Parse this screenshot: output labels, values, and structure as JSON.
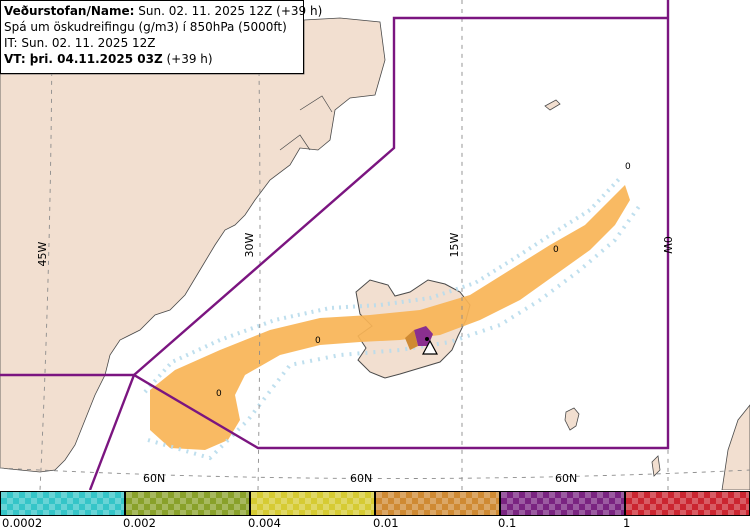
{
  "header": {
    "line1_label": "Veðurstofan/Name:",
    "line1_value": " Sun. 02. 11. 2025 12Z (+39 h)",
    "line2": "Spá um öskudreifingu (g/m3) í 850hPa (5000ft)",
    "line3": "IT: Sun. 02. 11. 2025 12Z",
    "line4_label": "VT: þri. 04.11.2025 03Z",
    "line4_value": " (+39 h)"
  },
  "map": {
    "longitude_labels": [
      "45W",
      "30W",
      "15W",
      "0W"
    ],
    "latitude_labels": [
      "60N",
      "60N",
      "60N"
    ],
    "contour_labels": [
      "0",
      "0",
      "0",
      "0"
    ],
    "volcano_marker": "triangle",
    "colors": {
      "sea": "#ffffff",
      "land": "#f2dfd0",
      "boundary": "#7b1580",
      "grid": "#8c8c8c",
      "ash_low": "#f8b456",
      "ash_lowest": "#b8dcec"
    }
  },
  "legend": {
    "colors": [
      "#35c5c8",
      "#89a12a",
      "#d6cb33",
      "#cf8a33",
      "#7a2481",
      "#cb2530"
    ],
    "labels": [
      "0.0002",
      "0.002",
      "0.004",
      "0.01",
      "0.1",
      "1"
    ]
  }
}
